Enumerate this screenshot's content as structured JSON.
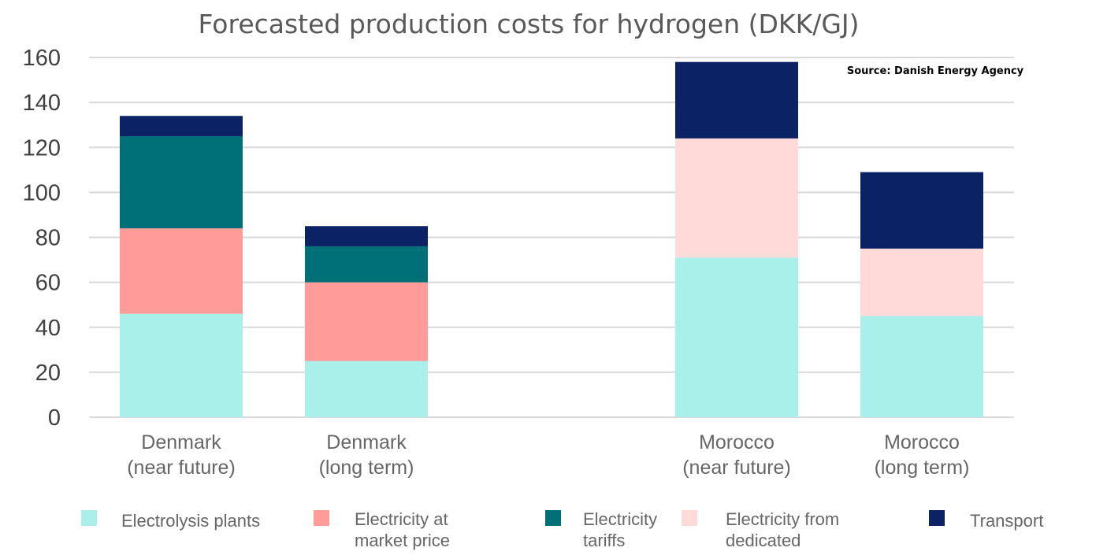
{
  "chart_data": {
    "type": "bar",
    "stacked": true,
    "title": "Forecasted production costs for hydrogen (DKK/GJ)",
    "source_note": "Source: Danish Energy Agency",
    "xlabel": "",
    "ylabel": "",
    "ylim": [
      0,
      160
    ],
    "yticks": [
      "0",
      "20",
      "40",
      "60",
      "80",
      "100",
      "120",
      "140",
      "160"
    ],
    "grid": true,
    "legend_position": "bottom",
    "categories": [
      [
        "Denmark",
        "(near future)"
      ],
      [
        "Denmark",
        "(long term)"
      ],
      [
        "Morocco",
        "(near future)"
      ],
      [
        "Morocco",
        "(long term)"
      ]
    ],
    "series": [
      {
        "name": [
          "Electrolysis plants"
        ],
        "color": "#a8f0e9",
        "values": [
          46,
          25,
          71,
          45
        ]
      },
      {
        "name": [
          "Electricity at",
          "market price"
        ],
        "color": "#ff9b98",
        "values": [
          38,
          35,
          0,
          0
        ]
      },
      {
        "name": [
          "Electricity",
          "tariffs"
        ],
        "color": "#007078",
        "values": [
          41,
          16,
          0,
          0
        ]
      },
      {
        "name": [
          "Electricity from",
          "dedicated"
        ],
        "color": "#ffdad9",
        "values": [
          0,
          0,
          53,
          30
        ]
      },
      {
        "name": [
          "Transport"
        ],
        "color": "#0b2264",
        "values": [
          9,
          9,
          34,
          34
        ]
      }
    ]
  }
}
